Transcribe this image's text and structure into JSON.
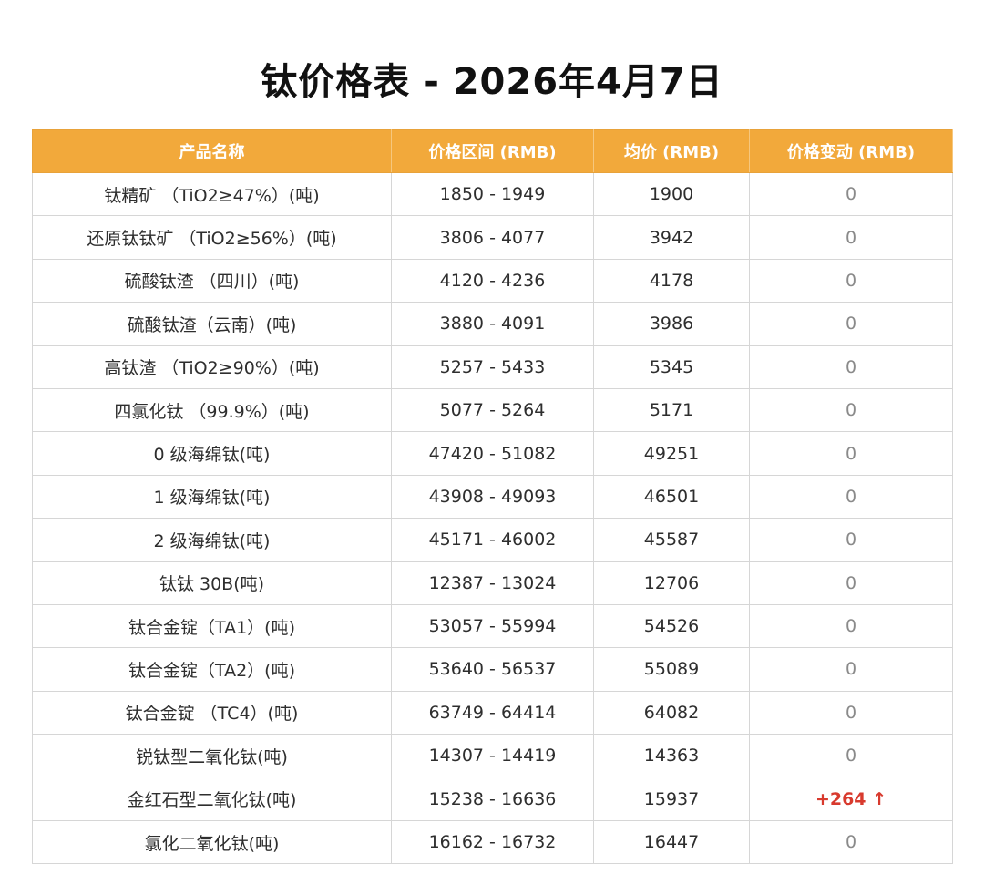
{
  "title": "钛价格表 - 2026年4月7日",
  "colors": {
    "header_bg": "#F2A93B",
    "header_text": "#FFFFFF",
    "increase": "#D83A2E",
    "neutral_change": "#8A8A8A"
  },
  "table": {
    "headers": [
      "产品名称",
      "价格区间 (RMB)",
      "均价 (RMB)",
      "价格变动 (RMB)"
    ],
    "rows": [
      {
        "name": "钛精矿 （TiO2≥47%）(吨)",
        "range": "1850 - 1949",
        "avg": "1900",
        "change": "0"
      },
      {
        "name": "还原钛钛矿 （TiO2≥56%）(吨)",
        "range": "3806 - 4077",
        "avg": "3942",
        "change": "0"
      },
      {
        "name": "硫酸钛渣 （四川）(吨)",
        "range": "4120 - 4236",
        "avg": "4178",
        "change": "0"
      },
      {
        "name": "硫酸钛渣（云南）(吨)",
        "range": "3880 - 4091",
        "avg": "3986",
        "change": "0"
      },
      {
        "name": "高钛渣 （TiO2≥90%）(吨)",
        "range": "5257 - 5433",
        "avg": "5345",
        "change": "0"
      },
      {
        "name": "四氯化钛 （99.9%）(吨)",
        "range": "5077 - 5264",
        "avg": "5171",
        "change": "0"
      },
      {
        "name": "0 级海绵钛(吨)",
        "range": "47420 - 51082",
        "avg": "49251",
        "change": "0"
      },
      {
        "name": "1 级海绵钛(吨)",
        "range": "43908 - 49093",
        "avg": "46501",
        "change": "0"
      },
      {
        "name": "2 级海绵钛(吨)",
        "range": "45171 - 46002",
        "avg": "45587",
        "change": "0"
      },
      {
        "name": "钛钛 30B(吨)",
        "range": "12387 - 13024",
        "avg": "12706",
        "change": "0"
      },
      {
        "name": "钛合金锭（TA1）(吨)",
        "range": "53057 - 55994",
        "avg": "54526",
        "change": "0"
      },
      {
        "name": "钛合金锭（TA2）(吨)",
        "range": "53640 - 56537",
        "avg": "55089",
        "change": "0"
      },
      {
        "name": "钛合金锭 （TC4）(吨)",
        "range": "63749 - 64414",
        "avg": "64082",
        "change": "0"
      },
      {
        "name": "锐钛型二氧化钛(吨)",
        "range": "14307 - 14419",
        "avg": "14363",
        "change": "0"
      },
      {
        "name": "金红石型二氧化钛(吨)",
        "range": "15238 - 16636",
        "avg": "15937",
        "change": "+264 ↑",
        "change_direction": "up"
      },
      {
        "name": "氯化二氧化钛(吨)",
        "range": "16162 - 16732",
        "avg": "16447",
        "change": "0"
      }
    ]
  }
}
